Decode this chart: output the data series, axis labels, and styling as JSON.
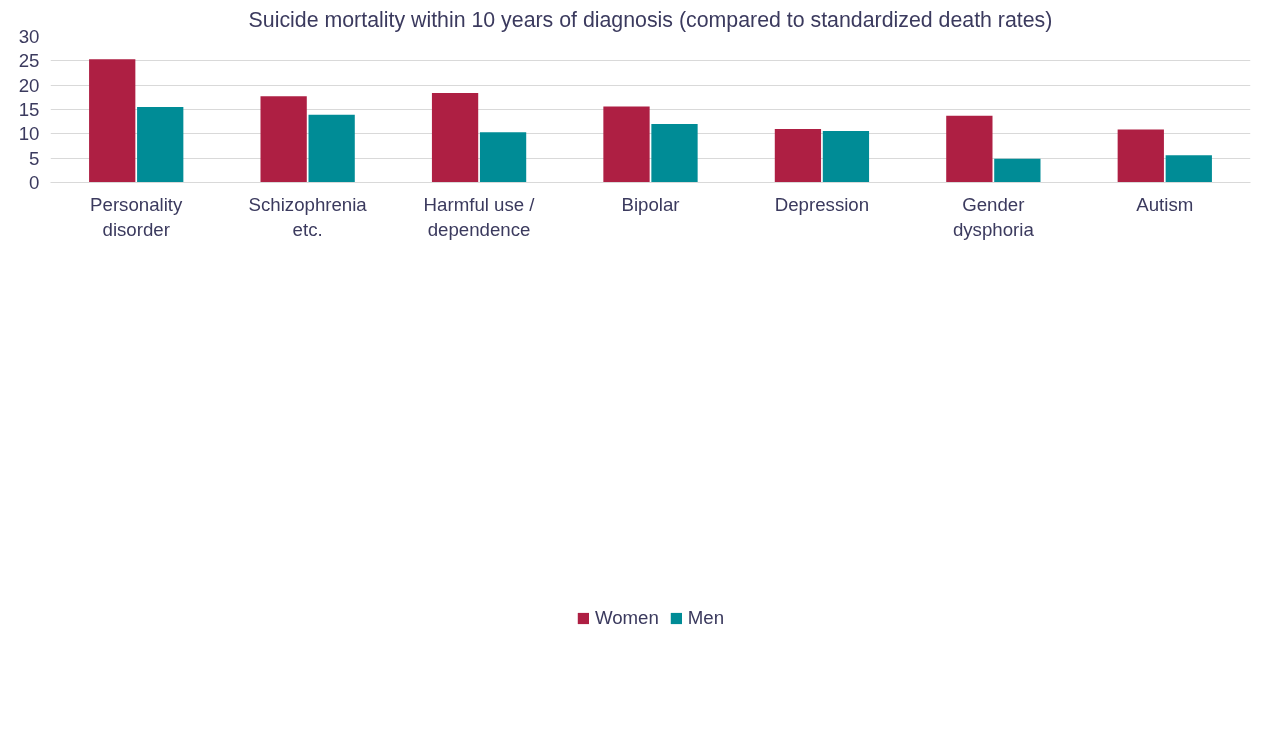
{
  "chart_data": {
    "type": "bar",
    "title": "Suicide mortality within 10 years of diagnosis (compared to standardized death rates)",
    "categories": [
      "Personality disorder",
      "Schizophrenia etc.",
      "Harmful use / dependence",
      "Bipolar",
      "Depression",
      "Gender dysphoria",
      "Autism"
    ],
    "series": [
      {
        "name": "Women",
        "color": "#ae1f43",
        "values": [
          25.3,
          17.7,
          18.4,
          15.6,
          11.0,
          13.7,
          10.9
        ]
      },
      {
        "name": "Men",
        "color": "#008c96",
        "values": [
          15.5,
          13.9,
          10.3,
          12.0,
          10.6,
          4.9,
          5.6
        ]
      }
    ],
    "ylim": [
      0,
      30
    ],
    "yticks": [
      0,
      5,
      10,
      15,
      20,
      25,
      30
    ],
    "grid": "y",
    "legend": "bottom"
  }
}
